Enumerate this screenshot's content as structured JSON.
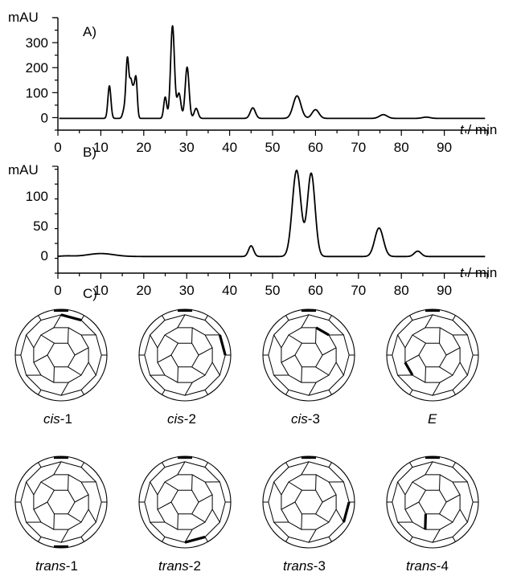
{
  "chart_data": [
    {
      "type": "line",
      "panel_label": "A)",
      "ylabel": "mAU",
      "xlabel": "t / min",
      "xlabel_var": "t",
      "xlabel_unit": "/ min",
      "xlim": [
        0,
        100
      ],
      "ylim": [
        -50,
        400
      ],
      "xticks": [
        0,
        10,
        20,
        30,
        40,
        50,
        60,
        70,
        80,
        90
      ],
      "yticks": [
        0,
        100,
        200,
        300
      ],
      "baseline": -3,
      "peaks": [
        {
          "x": 12.0,
          "y": 130,
          "w": 0.35
        },
        {
          "x": 15.4,
          "y": 30,
          "w": 0.35
        },
        {
          "x": 16.2,
          "y": 240,
          "w": 0.35
        },
        {
          "x": 17.0,
          "y": 130,
          "w": 0.3
        },
        {
          "x": 17.6,
          "y": 95,
          "w": 0.3
        },
        {
          "x": 18.2,
          "y": 155,
          "w": 0.3
        },
        {
          "x": 25.0,
          "y": 85,
          "w": 0.35
        },
        {
          "x": 26.7,
          "y": 370,
          "w": 0.45
        },
        {
          "x": 28.2,
          "y": 100,
          "w": 0.45
        },
        {
          "x": 30.1,
          "y": 205,
          "w": 0.45
        },
        {
          "x": 32.2,
          "y": 40,
          "w": 0.45
        },
        {
          "x": 45.4,
          "y": 42,
          "w": 0.6
        },
        {
          "x": 55.7,
          "y": 90,
          "w": 0.9
        },
        {
          "x": 60.0,
          "y": 35,
          "w": 0.8
        },
        {
          "x": 75.8,
          "y": 15,
          "w": 0.9
        },
        {
          "x": 85.8,
          "y": 5,
          "w": 0.9
        }
      ]
    },
    {
      "type": "line",
      "panel_label": "B)",
      "ylabel": "mAU",
      "xlabel": "t / min",
      "xlabel_var": "t",
      "xlabel_unit": "/ min",
      "xlim": [
        0,
        100
      ],
      "ylim": [
        -30,
        150
      ],
      "xticks": [
        0,
        10,
        20,
        30,
        40,
        50,
        60,
        70,
        80,
        90
      ],
      "yticks": [
        0,
        50,
        100
      ],
      "baseline": -2,
      "peaks": [
        {
          "x": 2.0,
          "y": 1,
          "w": 1.5
        },
        {
          "x": 10.0,
          "y": 5,
          "w": 3.0
        },
        {
          "x": 45.0,
          "y": 18,
          "w": 0.6
        },
        {
          "x": 55.6,
          "y": 145,
          "w": 1.0
        },
        {
          "x": 59.0,
          "y": 140,
          "w": 0.9
        },
        {
          "x": 74.8,
          "y": 48,
          "w": 1.0
        },
        {
          "x": 83.8,
          "y": 9,
          "w": 0.8
        }
      ]
    }
  ],
  "panel_c": {
    "label": "C)",
    "isomers": [
      {
        "name": "cis",
        "num": "-1"
      },
      {
        "name": "cis",
        "num": "-2"
      },
      {
        "name": "cis",
        "num": "-3"
      },
      {
        "name": "E",
        "num": ""
      },
      {
        "name": "trans",
        "num": "-1"
      },
      {
        "name": "trans",
        "num": "-2"
      },
      {
        "name": "trans",
        "num": "-3"
      },
      {
        "name": "trans",
        "num": "-4"
      }
    ]
  },
  "colors": {
    "line": "#000000",
    "bold_bond": "#000000",
    "ball_edge": "#000000"
  }
}
